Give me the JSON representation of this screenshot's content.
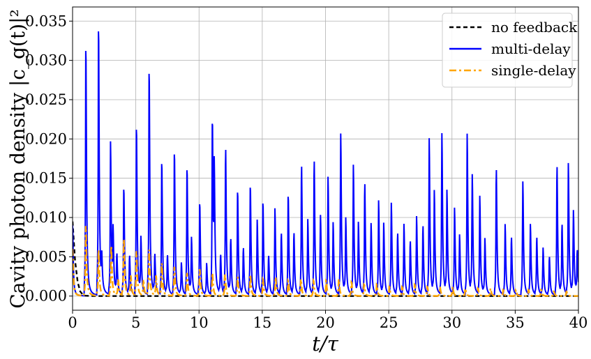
{
  "chart_data": {
    "type": "line",
    "xlabel": "t/τ",
    "ylabel": "Cavity photon density |c_g(t)|²",
    "xlim": [
      0,
      40
    ],
    "ylim": [
      -0.0018,
      0.0368
    ],
    "x_ticks": [
      "0",
      "5",
      "10",
      "15",
      "20",
      "25",
      "30",
      "35",
      "40"
    ],
    "y_ticks": [
      "0.000",
      "0.005",
      "0.010",
      "0.015",
      "0.020",
      "0.025",
      "0.030",
      "0.035"
    ],
    "grid": true,
    "legend_position": "top-right",
    "series": [
      {
        "name": "no feedback",
        "color": "#000000",
        "style": "dashed",
        "x": [
          0,
          0.2,
          0.4,
          0.6,
          0.8,
          1.0,
          1.5,
          2,
          40
        ],
        "y": [
          0.0095,
          0.0045,
          0.0018,
          0.0006,
          0.0002,
          5e-05,
          0,
          0,
          0
        ]
      },
      {
        "name": "multi-delay",
        "color": "#0000ff",
        "style": "solid",
        "peaks": [
          [
            0.0,
            0.009
          ],
          [
            1.05,
            0.0325
          ],
          [
            2.05,
            0.035
          ],
          [
            2.3,
            0.0042
          ],
          [
            3.0,
            0.0195
          ],
          [
            3.2,
            0.0075
          ],
          [
            3.5,
            0.005
          ],
          [
            4.05,
            0.0139
          ],
          [
            4.5,
            0.005
          ],
          [
            5.05,
            0.0219
          ],
          [
            5.4,
            0.007
          ],
          [
            6.05,
            0.0293
          ],
          [
            6.5,
            0.005
          ],
          [
            7.05,
            0.0173
          ],
          [
            7.5,
            0.005
          ],
          [
            8.05,
            0.0186
          ],
          [
            8.6,
            0.004
          ],
          [
            9.05,
            0.0165
          ],
          [
            9.4,
            0.007
          ],
          [
            10.05,
            0.012
          ],
          [
            10.6,
            0.004
          ],
          [
            11.05,
            0.0227
          ],
          [
            11.2,
            0.0147
          ],
          [
            11.7,
            0.005
          ],
          [
            12.1,
            0.019
          ],
          [
            12.5,
            0.007
          ],
          [
            13.05,
            0.0135
          ],
          [
            13.5,
            0.006
          ],
          [
            14.05,
            0.0142
          ],
          [
            14.6,
            0.0095
          ],
          [
            15.05,
            0.012
          ],
          [
            15.5,
            0.005
          ],
          [
            16.0,
            0.011
          ],
          [
            16.5,
            0.008
          ],
          [
            17.05,
            0.013
          ],
          [
            17.5,
            0.008
          ],
          [
            18.1,
            0.0169
          ],
          [
            18.6,
            0.0095
          ],
          [
            19.1,
            0.0175
          ],
          [
            19.6,
            0.01
          ],
          [
            20.2,
            0.015
          ],
          [
            20.6,
            0.009
          ],
          [
            21.2,
            0.0205
          ],
          [
            21.6,
            0.0095
          ],
          [
            22.2,
            0.0165
          ],
          [
            22.6,
            0.009
          ],
          [
            23.1,
            0.0145
          ],
          [
            23.6,
            0.009
          ],
          [
            24.2,
            0.012
          ],
          [
            24.6,
            0.009
          ],
          [
            25.2,
            0.0117
          ],
          [
            25.7,
            0.008
          ],
          [
            26.2,
            0.009
          ],
          [
            26.7,
            0.007
          ],
          [
            27.2,
            0.01
          ],
          [
            27.7,
            0.009
          ],
          [
            28.2,
            0.0199
          ],
          [
            28.6,
            0.013
          ],
          [
            29.2,
            0.0205
          ],
          [
            29.6,
            0.013
          ],
          [
            30.2,
            0.011
          ],
          [
            30.6,
            0.0075
          ],
          [
            31.2,
            0.0205
          ],
          [
            31.6,
            0.015
          ],
          [
            32.2,
            0.0125
          ],
          [
            32.6,
            0.007
          ],
          [
            33.5,
            0.0165
          ],
          [
            34.2,
            0.009
          ],
          [
            34.7,
            0.0075
          ],
          [
            35.6,
            0.0145
          ],
          [
            36.2,
            0.009
          ],
          [
            36.7,
            0.0075
          ],
          [
            37.2,
            0.006
          ],
          [
            37.7,
            0.005
          ],
          [
            38.3,
            0.0169
          ],
          [
            38.7,
            0.009
          ],
          [
            39.2,
            0.0167
          ],
          [
            39.6,
            0.0105
          ],
          [
            39.9,
            0.0055
          ]
        ]
      },
      {
        "name": "single-delay",
        "color": "#ffa500",
        "style": "dashdot",
        "peaks": [
          [
            0.0,
            0.006
          ],
          [
            1.05,
            0.0092
          ],
          [
            2.05,
            0.006
          ],
          [
            3.05,
            0.0066
          ],
          [
            3.6,
            0.002
          ],
          [
            4.05,
            0.0074
          ],
          [
            4.6,
            0.0025
          ],
          [
            5.05,
            0.0058
          ],
          [
            5.6,
            0.002
          ],
          [
            6.05,
            0.006
          ],
          [
            6.6,
            0.0025
          ],
          [
            7.05,
            0.0042
          ],
          [
            8.05,
            0.0038
          ],
          [
            9.05,
            0.003
          ],
          [
            10.05,
            0.0035
          ],
          [
            11.05,
            0.003
          ],
          [
            12.05,
            0.0028
          ],
          [
            13.05,
            0.0025
          ],
          [
            14.05,
            0.0028
          ],
          [
            15.05,
            0.0022
          ],
          [
            16.05,
            0.0025
          ],
          [
            17.05,
            0.002
          ],
          [
            18.05,
            0.0022
          ],
          [
            19.05,
            0.002
          ],
          [
            20.05,
            0.002
          ],
          [
            21.05,
            0.0022
          ],
          [
            22.05,
            0.0018
          ],
          [
            23.05,
            0.0015
          ],
          [
            24.05,
            0.0015
          ],
          [
            25.05,
            0.0012
          ],
          [
            26.05,
            0.0012
          ],
          [
            27.05,
            0.0015
          ],
          [
            28.05,
            0.0012
          ],
          [
            29.05,
            0.0012
          ],
          [
            30.05,
            0.0012
          ],
          [
            31.05,
            0.001
          ],
          [
            32.05,
            0.001
          ],
          [
            33.05,
            0.001
          ],
          [
            34.05,
            0.0008
          ],
          [
            35.05,
            0.0008
          ],
          [
            36.05,
            0.0008
          ],
          [
            37.05,
            0.0008
          ],
          [
            38.05,
            0.0006
          ],
          [
            39.05,
            0.0006
          ]
        ]
      }
    ]
  }
}
